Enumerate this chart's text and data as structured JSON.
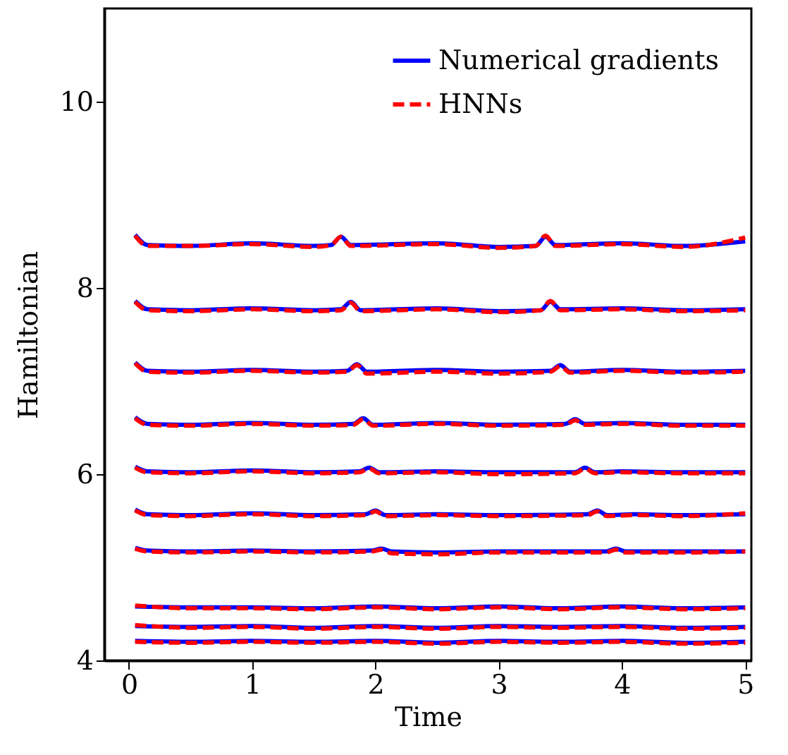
{
  "chart_data": {
    "type": "line",
    "xlabel": "Time",
    "ylabel": "Hamiltonian",
    "xlim": [
      -0.2,
      5.05
    ],
    "ylim": [
      4,
      11
    ],
    "xticks": [
      0,
      1,
      2,
      3,
      4,
      5
    ],
    "yticks": [
      4,
      6,
      8,
      10
    ],
    "grid": false,
    "legend": "top right",
    "marker": "none",
    "series": [
      {
        "name": "Numerical gradients",
        "color": "#0000ff",
        "line_style": "solid",
        "x": [
          0.05,
          0.15,
          0.5,
          1.0,
          1.5,
          1.64,
          1.72,
          1.8,
          2.5,
          3.0,
          3.3,
          3.38,
          3.46,
          4.0,
          4.5,
          5.0
        ],
        "values": [
          8.57,
          8.46,
          8.45,
          8.48,
          8.45,
          8.46,
          8.55,
          8.46,
          8.48,
          8.44,
          8.45,
          8.55,
          8.46,
          8.48,
          8.45,
          8.5
        ]
      },
      {
        "name": "HNNs",
        "color": "#ff0000",
        "line_style": "dashed",
        "x": [
          0.05,
          0.15,
          0.5,
          1.0,
          1.5,
          1.64,
          1.72,
          1.8,
          2.5,
          3.0,
          3.3,
          3.38,
          3.46,
          4.0,
          4.5,
          5.0
        ],
        "values": [
          8.56,
          8.45,
          8.45,
          8.47,
          8.44,
          8.46,
          8.55,
          8.45,
          8.47,
          8.43,
          8.45,
          8.56,
          8.45,
          8.47,
          8.44,
          8.54
        ]
      },
      {
        "color": "#0000ff",
        "line_style": "solid",
        "x": [
          0.05,
          0.15,
          0.5,
          1.0,
          1.5,
          1.72,
          1.8,
          1.88,
          2.5,
          3.0,
          3.34,
          3.42,
          3.5,
          4.0,
          4.5,
          5.0
        ],
        "values": [
          7.86,
          7.77,
          7.76,
          7.78,
          7.76,
          7.77,
          7.85,
          7.76,
          7.78,
          7.75,
          7.76,
          7.85,
          7.77,
          7.78,
          7.76,
          7.77
        ]
      },
      {
        "color": "#ff0000",
        "line_style": "dashed",
        "x": [
          0.05,
          0.15,
          0.5,
          1.0,
          1.5,
          1.72,
          1.8,
          1.88,
          2.5,
          3.0,
          3.34,
          3.42,
          3.5,
          4.0,
          4.5,
          5.0
        ],
        "values": [
          7.85,
          7.76,
          7.75,
          7.77,
          7.75,
          7.76,
          7.84,
          7.75,
          7.77,
          7.74,
          7.76,
          7.86,
          7.76,
          7.77,
          7.75,
          7.76
        ]
      },
      {
        "color": "#0000ff",
        "line_style": "solid",
        "x": [
          0.05,
          0.15,
          0.5,
          1.0,
          1.5,
          1.77,
          1.85,
          1.93,
          2.5,
          3.0,
          3.42,
          3.5,
          3.58,
          4.0,
          4.5,
          5.0
        ],
        "values": [
          7.2,
          7.11,
          7.1,
          7.12,
          7.1,
          7.11,
          7.18,
          7.1,
          7.12,
          7.1,
          7.11,
          7.17,
          7.1,
          7.12,
          7.1,
          7.11
        ]
      },
      {
        "color": "#ff0000",
        "line_style": "dashed",
        "x": [
          0.05,
          0.15,
          0.5,
          1.0,
          1.5,
          1.77,
          1.85,
          1.93,
          2.5,
          3.0,
          3.42,
          3.5,
          3.58,
          4.0,
          4.5,
          5.0
        ],
        "values": [
          7.19,
          7.1,
          7.09,
          7.11,
          7.09,
          7.1,
          7.17,
          7.08,
          7.1,
          7.08,
          7.1,
          7.16,
          7.09,
          7.11,
          7.09,
          7.1
        ]
      },
      {
        "color": "#0000ff",
        "line_style": "solid",
        "x": [
          0.05,
          0.15,
          0.5,
          1.0,
          1.5,
          1.82,
          1.9,
          1.98,
          2.5,
          3.0,
          3.54,
          3.62,
          3.7,
          4.0,
          4.5,
          5.0
        ],
        "values": [
          6.61,
          6.54,
          6.53,
          6.55,
          6.53,
          6.54,
          6.6,
          6.53,
          6.55,
          6.53,
          6.54,
          6.59,
          6.54,
          6.55,
          6.53,
          6.53
        ]
      },
      {
        "color": "#ff0000",
        "line_style": "dashed",
        "x": [
          0.05,
          0.15,
          0.5,
          1.0,
          1.5,
          1.82,
          1.9,
          1.98,
          2.5,
          3.0,
          3.54,
          3.62,
          3.7,
          4.0,
          4.5,
          5.0
        ],
        "values": [
          6.6,
          6.53,
          6.52,
          6.54,
          6.52,
          6.53,
          6.59,
          6.52,
          6.54,
          6.52,
          6.53,
          6.58,
          6.53,
          6.54,
          6.52,
          6.52
        ]
      },
      {
        "color": "#0000ff",
        "line_style": "solid",
        "x": [
          0.05,
          0.15,
          0.5,
          1.0,
          1.5,
          1.87,
          1.95,
          2.03,
          2.5,
          3.0,
          3.62,
          3.7,
          3.78,
          4.0,
          4.5,
          5.0
        ],
        "values": [
          6.08,
          6.03,
          6.02,
          6.04,
          6.02,
          6.03,
          6.07,
          6.02,
          6.03,
          6.02,
          6.02,
          6.07,
          6.02,
          6.03,
          6.02,
          6.02
        ]
      },
      {
        "color": "#ff0000",
        "line_style": "dashed",
        "x": [
          0.05,
          0.15,
          0.5,
          1.0,
          1.5,
          1.87,
          1.95,
          2.03,
          2.5,
          3.0,
          3.62,
          3.7,
          3.78,
          4.0,
          4.5,
          5.0
        ],
        "values": [
          6.07,
          6.02,
          6.01,
          6.03,
          6.01,
          6.02,
          6.06,
          6.01,
          6.02,
          6.0,
          6.01,
          6.06,
          6.01,
          6.02,
          6.01,
          6.01
        ]
      },
      {
        "color": "#0000ff",
        "line_style": "solid",
        "x": [
          0.05,
          0.15,
          0.5,
          1.0,
          1.5,
          1.92,
          2.0,
          2.08,
          2.5,
          3.0,
          3.72,
          3.8,
          3.88,
          4.1,
          4.5,
          5.0
        ],
        "values": [
          5.62,
          5.57,
          5.56,
          5.58,
          5.56,
          5.57,
          5.61,
          5.56,
          5.57,
          5.56,
          5.57,
          5.61,
          5.56,
          5.57,
          5.56,
          5.57
        ]
      },
      {
        "color": "#ff0000",
        "line_style": "dashed",
        "x": [
          0.05,
          0.15,
          0.5,
          1.0,
          1.5,
          1.92,
          2.0,
          2.08,
          2.5,
          3.0,
          3.72,
          3.8,
          3.88,
          4.1,
          4.5,
          5.0
        ],
        "values": [
          5.61,
          5.56,
          5.55,
          5.57,
          5.55,
          5.56,
          5.6,
          5.55,
          5.56,
          5.55,
          5.56,
          5.6,
          5.55,
          5.56,
          5.55,
          5.58
        ]
      },
      {
        "color": "#0000ff",
        "line_style": "solid",
        "x": [
          0.05,
          0.15,
          0.5,
          1.0,
          1.5,
          1.97,
          2.05,
          2.13,
          2.5,
          3.0,
          3.87,
          3.95,
          4.03,
          4.3,
          4.6,
          5.0
        ],
        "values": [
          5.21,
          5.18,
          5.17,
          5.18,
          5.17,
          5.18,
          5.2,
          5.17,
          5.16,
          5.17,
          5.17,
          5.2,
          5.17,
          5.17,
          5.17,
          5.17
        ]
      },
      {
        "color": "#ff0000",
        "line_style": "dashed",
        "x": [
          0.05,
          0.15,
          0.5,
          1.0,
          1.5,
          1.97,
          2.05,
          2.13,
          2.5,
          3.0,
          3.87,
          3.95,
          4.03,
          4.3,
          4.6,
          5.0
        ],
        "values": [
          5.2,
          5.17,
          5.16,
          5.17,
          5.16,
          5.17,
          5.19,
          5.15,
          5.14,
          5.16,
          5.16,
          5.19,
          5.16,
          5.16,
          5.16,
          5.17
        ]
      },
      {
        "color": "#0000ff",
        "line_style": "solid",
        "x": [
          0.05,
          0.5,
          1.0,
          1.5,
          2.0,
          2.5,
          3.0,
          3.5,
          4.0,
          4.5,
          5.0
        ],
        "values": [
          4.58,
          4.57,
          4.57,
          4.56,
          4.58,
          4.56,
          4.58,
          4.56,
          4.58,
          4.56,
          4.57
        ]
      },
      {
        "color": "#ff0000",
        "line_style": "dashed",
        "x": [
          0.05,
          0.5,
          1.0,
          1.5,
          2.0,
          2.5,
          3.0,
          3.5,
          4.0,
          4.5,
          5.0
        ],
        "values": [
          4.59,
          4.56,
          4.56,
          4.55,
          4.57,
          4.55,
          4.57,
          4.55,
          4.57,
          4.55,
          4.56
        ]
      },
      {
        "color": "#0000ff",
        "line_style": "solid",
        "x": [
          0.05,
          0.5,
          1.0,
          1.5,
          2.0,
          2.5,
          3.0,
          3.5,
          4.0,
          4.5,
          5.0
        ],
        "values": [
          4.37,
          4.36,
          4.37,
          4.35,
          4.37,
          4.35,
          4.37,
          4.36,
          4.37,
          4.35,
          4.36
        ]
      },
      {
        "color": "#ff0000",
        "line_style": "dashed",
        "x": [
          0.05,
          0.5,
          1.0,
          1.5,
          2.0,
          2.5,
          3.0,
          3.5,
          4.0,
          4.5,
          5.0
        ],
        "values": [
          4.38,
          4.35,
          4.36,
          4.34,
          4.36,
          4.34,
          4.36,
          4.35,
          4.36,
          4.34,
          4.35
        ]
      },
      {
        "color": "#0000ff",
        "line_style": "solid",
        "x": [
          0.05,
          0.5,
          1.0,
          1.5,
          2.0,
          2.5,
          3.0,
          3.5,
          4.0,
          4.5,
          5.0
        ],
        "values": [
          4.21,
          4.2,
          4.21,
          4.2,
          4.21,
          4.19,
          4.21,
          4.2,
          4.21,
          4.19,
          4.2
        ]
      },
      {
        "color": "#ff0000",
        "line_style": "dashed",
        "x": [
          0.05,
          0.5,
          1.0,
          1.5,
          2.0,
          2.5,
          3.0,
          3.5,
          4.0,
          4.5,
          5.0
        ],
        "values": [
          4.2,
          4.19,
          4.2,
          4.19,
          4.2,
          4.18,
          4.2,
          4.19,
          4.2,
          4.18,
          4.19
        ]
      }
    ]
  }
}
